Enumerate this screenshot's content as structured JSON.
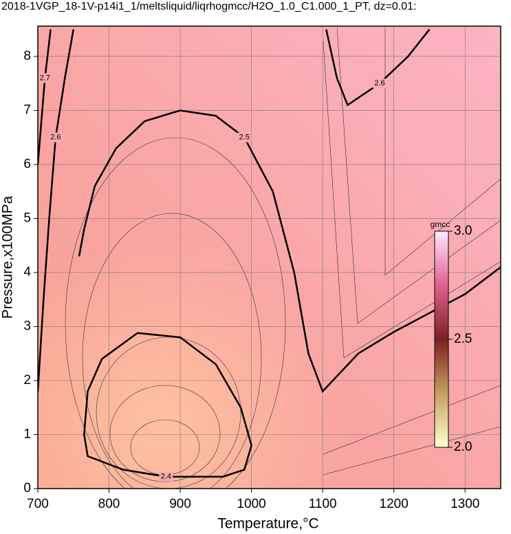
{
  "chart_data": {
    "type": "contour",
    "title": "2018-1VGP_18-1V-p14i1_1/meltsliquid/liqrhogmcc/H2O_1.0_C1.000_1_PT, dz=0.01:",
    "x_label": "Temperature,°C",
    "y_label": "Pressure,x100MPa",
    "xlim": [
      700,
      1350
    ],
    "ylim": [
      0,
      8.56
    ],
    "xticks": [
      700,
      800,
      900,
      1000,
      1100,
      1200,
      1300
    ],
    "yticks": [
      0,
      1,
      2,
      3,
      4,
      5,
      6,
      7,
      8
    ],
    "grid": true,
    "contours": [
      {
        "level": 2.4,
        "x": [
          840,
          900,
          950,
          985,
          1000,
          990,
          960,
          880,
          820,
          770,
          765,
          770,
          790,
          840
        ],
        "y": [
          2.88,
          2.8,
          2.3,
          1.5,
          0.8,
          0.35,
          0.22,
          0.22,
          0.35,
          0.6,
          1.0,
          1.8,
          2.4,
          2.88
        ]
      },
      {
        "level": 2.5,
        "x": [
          1350,
          1300,
          1200,
          1150,
          1100,
          1080,
          1060,
          1030,
          990,
          950,
          900,
          850,
          810,
          780,
          765,
          758
        ],
        "y": [
          4.1,
          3.6,
          2.9,
          2.5,
          1.8,
          2.5,
          4.0,
          5.5,
          6.5,
          6.9,
          7.0,
          6.8,
          6.3,
          5.6,
          4.8,
          4.3
        ]
      },
      {
        "level": 2.6,
        "x": [
          1105,
          1120,
          1135,
          1180,
          1220,
          1250
        ],
        "y": [
          8.5,
          7.6,
          7.1,
          7.5,
          8.0,
          8.5
        ]
      },
      {
        "level": 2.6,
        "x": [
          700,
          708,
          716,
          725,
          738,
          750
        ],
        "y": [
          1.8,
          3.5,
          5.0,
          6.5,
          7.6,
          8.5
        ]
      },
      {
        "level": 2.7,
        "x": [
          700,
          705,
          710,
          718
        ],
        "y": [
          6.0,
          6.8,
          7.6,
          8.5
        ]
      }
    ],
    "colorbar": {
      "label": "gmcc",
      "lim": [
        2,
        3
      ],
      "ticks": [
        {
          "value": 2,
          "label": "2.0"
        },
        2.5,
        {
          "value": 3,
          "label": "3.0"
        }
      ]
    }
  }
}
